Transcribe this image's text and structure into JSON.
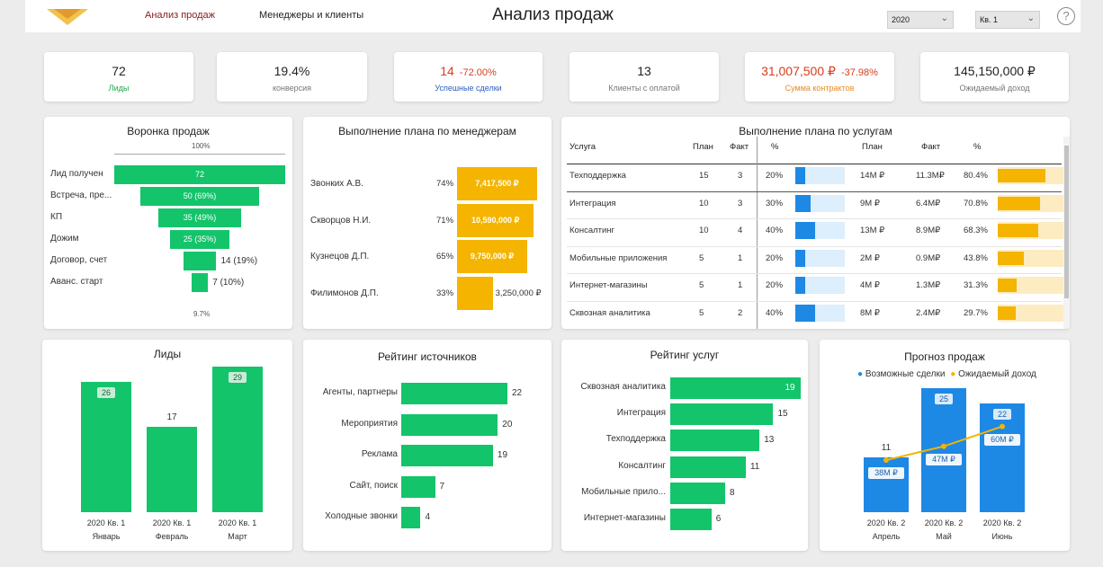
{
  "nav": {
    "tab_sales": "Анализ продаж",
    "tab_managers": "Менеджеры и клиенты",
    "title": "Анализ продаж",
    "year": "2020",
    "quarter": "Кв. 1",
    "help": "?"
  },
  "kpis": [
    {
      "value": "72",
      "label": "Лиды",
      "delta": ""
    },
    {
      "value": "19.4%",
      "label": "конверсия",
      "delta": ""
    },
    {
      "value": "14",
      "label": "Успешные сделки",
      "delta": "-72.00%"
    },
    {
      "value": "13",
      "label": "Клиенты с оплатой",
      "delta": ""
    },
    {
      "value": "31,007,500 ₽",
      "label": "Сумма контрактов",
      "delta": "-37.98%"
    },
    {
      "value": "145,150,000 ₽",
      "label": "Ожидаемый доход",
      "delta": ""
    }
  ],
  "funnel": {
    "title": "Воронка продаж",
    "top_pct": "100%",
    "bottom_pct": "9.7%",
    "stages": [
      {
        "label": "Лид получен",
        "text": "72",
        "value": 72
      },
      {
        "label": "Встреча, пре...",
        "text": "50 (69%)",
        "value": 50
      },
      {
        "label": "КП",
        "text": "35 (49%)",
        "value": 35
      },
      {
        "label": "Дожим",
        "text": "25 (35%)",
        "value": 25
      },
      {
        "label": "Договор, счет",
        "text": "14 (19%)",
        "value": 14
      },
      {
        "label": "Аванс. старт",
        "text": "7 (10%)",
        "value": 7
      }
    ]
  },
  "managers": {
    "title": "Выполнение плана по менеджерам",
    "rows": [
      {
        "name": "Звонких А.В.",
        "pct": "74%",
        "amount": "7,417,500 ₽",
        "fill": 0.74
      },
      {
        "name": "Скворцов Н.И.",
        "pct": "71%",
        "amount": "10,590,000 ₽",
        "fill": 0.71
      },
      {
        "name": "Кузнецов Д.П.",
        "pct": "65%",
        "amount": "9,750,000 ₽",
        "fill": 0.65
      },
      {
        "name": "Филимонов Д.П.",
        "pct": "33%",
        "amount": "3,250,000 ₽",
        "fill": 0.33
      }
    ]
  },
  "services_plan": {
    "title": "Выполнение плана по услугам",
    "headers": {
      "service": "Услуга",
      "plan": "План",
      "fact": "Факт",
      "pct": "%",
      "plan2": "План",
      "fact2": "Факт",
      "pct2": "%"
    },
    "rows": [
      {
        "name": "Техподдержка",
        "plan": "15",
        "fact": "3",
        "pct": "20%",
        "plan2": "14M ₽",
        "fact2": "11.3M₽",
        "pct2": "80.4%",
        "p1": 0.2,
        "p2": 0.804
      },
      {
        "name": "Интеграция",
        "plan": "10",
        "fact": "3",
        "pct": "30%",
        "plan2": "9M ₽",
        "fact2": "6.4M₽",
        "pct2": "70.8%",
        "p1": 0.3,
        "p2": 0.708
      },
      {
        "name": "Консалтинг",
        "plan": "10",
        "fact": "4",
        "pct": "40%",
        "plan2": "13M ₽",
        "fact2": "8.9M₽",
        "pct2": "68.3%",
        "p1": 0.4,
        "p2": 0.683
      },
      {
        "name": "Мобильные приложения",
        "plan": "5",
        "fact": "1",
        "pct": "20%",
        "plan2": "2M ₽",
        "fact2": "0.9M₽",
        "pct2": "43.8%",
        "p1": 0.2,
        "p2": 0.438
      },
      {
        "name": "Интернет-магазины",
        "plan": "5",
        "fact": "1",
        "pct": "20%",
        "plan2": "4M ₽",
        "fact2": "1.3M₽",
        "pct2": "31.3%",
        "p1": 0.2,
        "p2": 0.313
      },
      {
        "name": "Сквозная аналитика",
        "plan": "5",
        "fact": "2",
        "pct": "40%",
        "plan2": "8M ₽",
        "fact2": "2.4M₽",
        "pct2": "29.7%",
        "p1": 0.4,
        "p2": 0.297
      }
    ]
  },
  "leads": {
    "title": "Лиды",
    "bars": [
      {
        "value": 26,
        "text": "26",
        "period": "2020 Кв. 1",
        "month": "Январь"
      },
      {
        "value": 17,
        "text": "17",
        "period": "2020 Кв. 1",
        "month": "Февраль"
      },
      {
        "value": 29,
        "text": "29",
        "period": "2020 Кв. 1",
        "month": "Март"
      }
    ]
  },
  "sources": {
    "title": "Рейтинг источников",
    "rows": [
      {
        "label": "Агенты, партнеры",
        "value": 22,
        "text": "22"
      },
      {
        "label": "Мероприятия",
        "value": 20,
        "text": "20"
      },
      {
        "label": "Реклама",
        "value": 19,
        "text": "19"
      },
      {
        "label": "Сайт, поиск",
        "value": 7,
        "text": "7"
      },
      {
        "label": "Холодные звонки",
        "value": 4,
        "text": "4"
      }
    ]
  },
  "services_rating": {
    "title": "Рейтинг услуг",
    "rows": [
      {
        "label": "Сквозная аналитика",
        "value": 19,
        "text": "19"
      },
      {
        "label": "Интеграция",
        "value": 15,
        "text": "15"
      },
      {
        "label": "Техподдержка",
        "value": 13,
        "text": "13"
      },
      {
        "label": "Консалтинг",
        "value": 11,
        "text": "11"
      },
      {
        "label": "Мобильные прило...",
        "value": 8,
        "text": "8"
      },
      {
        "label": "Интернет-магазины",
        "value": 6,
        "text": "6"
      }
    ]
  },
  "forecast": {
    "title": "Прогноз продаж",
    "legend_deals": "Возможные сделки",
    "legend_income": "Ожидаемый доход",
    "bars": [
      {
        "deals": 11,
        "deals_text": "11",
        "income": 38,
        "income_text": "38M ₽",
        "period": "2020 Кв. 2",
        "month": "Апрель"
      },
      {
        "deals": 25,
        "deals_text": "25",
        "income": 47,
        "income_text": "47M ₽",
        "period": "2020 Кв. 2",
        "month": "Май"
      },
      {
        "deals": 22,
        "deals_text": "22",
        "income": 60,
        "income_text": "60M ₽",
        "period": "2020 Кв. 2",
        "month": "Июнь"
      }
    ]
  },
  "colors": {
    "green": "#13c46a",
    "yellow": "#f4b400",
    "blue": "#1e88e5",
    "red": "#d93c1e"
  }
}
